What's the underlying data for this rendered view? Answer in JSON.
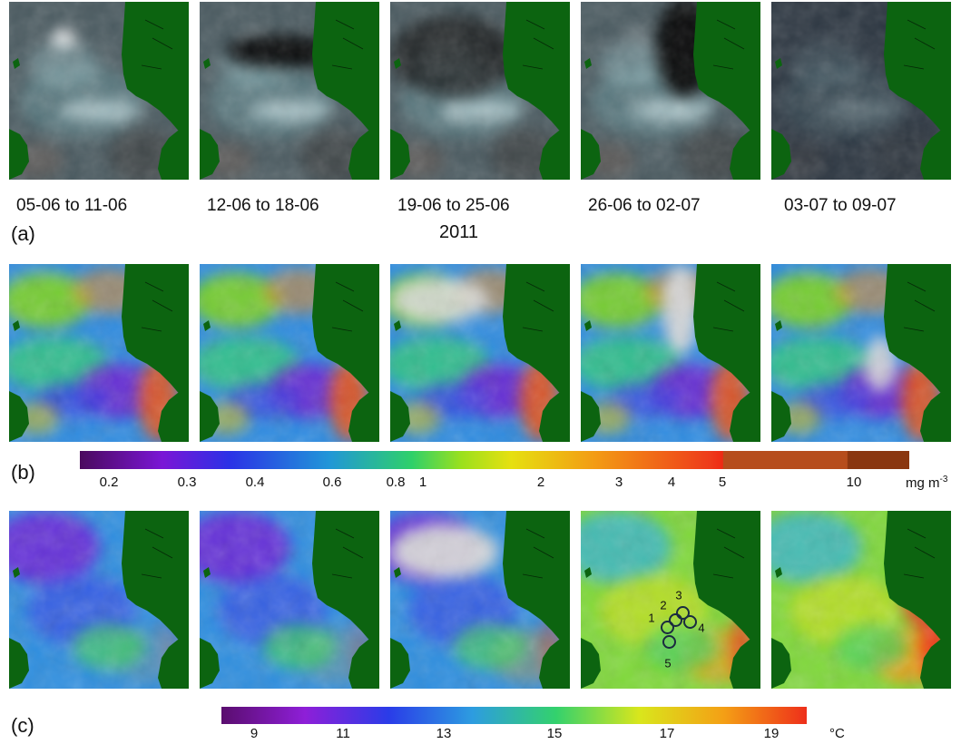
{
  "panels": [
    {
      "label": "(a)",
      "kind": "true-colour"
    },
    {
      "label": "(b)",
      "kind": "chlorophyll"
    },
    {
      "label": "(c)",
      "kind": "sst"
    }
  ],
  "dates": [
    "05-06 to 11-06",
    "12-06 to 18-06",
    "19-06 to 25-06",
    "26-06 to 02-07",
    "03-07 to 09-07"
  ],
  "year": "2011",
  "chl_scale": {
    "ticks": [
      "0.2",
      "0.3",
      "0.4",
      "0.6",
      "0.8",
      "1",
      "2",
      "3",
      "4",
      "5",
      "10"
    ],
    "unit": "mg m",
    "unit_sup": "-3",
    "stops": [
      "#4b0a5e",
      "#7a16d6",
      "#2b31e6",
      "#2196d8",
      "#2ed06a",
      "#9be01d",
      "#e6e010",
      "#f39c14",
      "#ee3b1a",
      "#b64d1c",
      "#8a3610"
    ]
  },
  "sst_scale": {
    "ticks": [
      "9",
      "11",
      "13",
      "15",
      "17",
      "19"
    ],
    "unit": "°C",
    "stops": [
      "#5a0d6e",
      "#8e1fd8",
      "#2a3ce8",
      "#2d9ce0",
      "#33d16d",
      "#d9e61c",
      "#f4a015",
      "#ee2f1a"
    ]
  },
  "stations": [
    "1",
    "2",
    "3",
    "4",
    "5"
  ],
  "colors": {
    "land": "#0c6410",
    "cloud": "#d8d8d8"
  }
}
